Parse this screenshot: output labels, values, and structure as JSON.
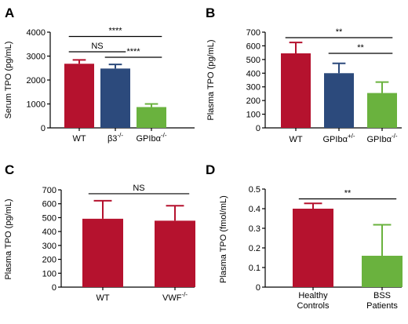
{
  "colors": {
    "red": "#b5122e",
    "blue": "#2c4a7c",
    "green": "#6ab23e",
    "axis": "#000000"
  },
  "chart_data": [
    {
      "panel": "A",
      "type": "bar",
      "ylabel": "Serum TPO (pg/mL)",
      "ylim": [
        0,
        4000
      ],
      "yticks": [
        "0",
        "1000",
        "2000",
        "3000",
        "4000"
      ],
      "categories": [
        "WT",
        "β3",
        "GPIbα"
      ],
      "category_sup": [
        "",
        "-/-",
        "-/-"
      ],
      "values": [
        2680,
        2480,
        870
      ],
      "errors": [
        160,
        170,
        130
      ],
      "bar_colors": [
        "red",
        "blue",
        "green"
      ],
      "significance": [
        {
          "from": 0,
          "to": 1,
          "label": "NS",
          "y": 3180
        },
        {
          "from": 1,
          "to": 2,
          "label": "****",
          "y": 2950
        },
        {
          "from": 0,
          "to": 2,
          "label": "****",
          "y": 3820
        }
      ]
    },
    {
      "panel": "B",
      "type": "bar",
      "ylabel": "Plasma TPO (pg/mL)",
      "ylim": [
        0,
        700
      ],
      "yticks": [
        "0",
        "100",
        "200",
        "300",
        "400",
        "500",
        "600",
        "700"
      ],
      "categories": [
        "WT",
        "GPIbα",
        "GPIbα"
      ],
      "category_sup": [
        "",
        "+/-",
        "-/-"
      ],
      "values": [
        545,
        400,
        255
      ],
      "errors": [
        80,
        72,
        80
      ],
      "bar_colors": [
        "red",
        "blue",
        "green"
      ],
      "significance": [
        {
          "from": 0,
          "to": 2,
          "label": "**",
          "y": 660
        },
        {
          "from": 1,
          "to": 2,
          "label": "**",
          "y": 545
        }
      ]
    },
    {
      "panel": "C",
      "type": "bar",
      "ylabel": "Plasma TPO (pg/mL)",
      "ylim": [
        0,
        700
      ],
      "yticks": [
        "0",
        "100",
        "200",
        "300",
        "400",
        "500",
        "600",
        "700"
      ],
      "categories": [
        "WT",
        "VWF"
      ],
      "category_sup": [
        "",
        "-/-"
      ],
      "values": [
        492,
        478
      ],
      "errors": [
        130,
        108
      ],
      "bar_colors": [
        "red",
        "red"
      ],
      "significance": [
        {
          "from": 0,
          "to": 1,
          "label": "NS",
          "y": 672
        }
      ]
    },
    {
      "panel": "D",
      "type": "bar",
      "ylabel": "Plasma TPO (fmol/mL)",
      "ylim": [
        0,
        0.5
      ],
      "yticks": [
        "0",
        "0.1",
        "0.2",
        "0.3",
        "0.4",
        "0.5"
      ],
      "categories": [
        "Healthy\nControls",
        "BSS\nPatients"
      ],
      "category_sup": [
        "",
        ""
      ],
      "values": [
        0.4,
        0.16
      ],
      "errors": [
        0.027,
        0.158
      ],
      "bar_colors": [
        "red",
        "green"
      ],
      "significance": [
        {
          "from": 0,
          "to": 1,
          "label": "**",
          "y": 0.45
        }
      ]
    }
  ]
}
